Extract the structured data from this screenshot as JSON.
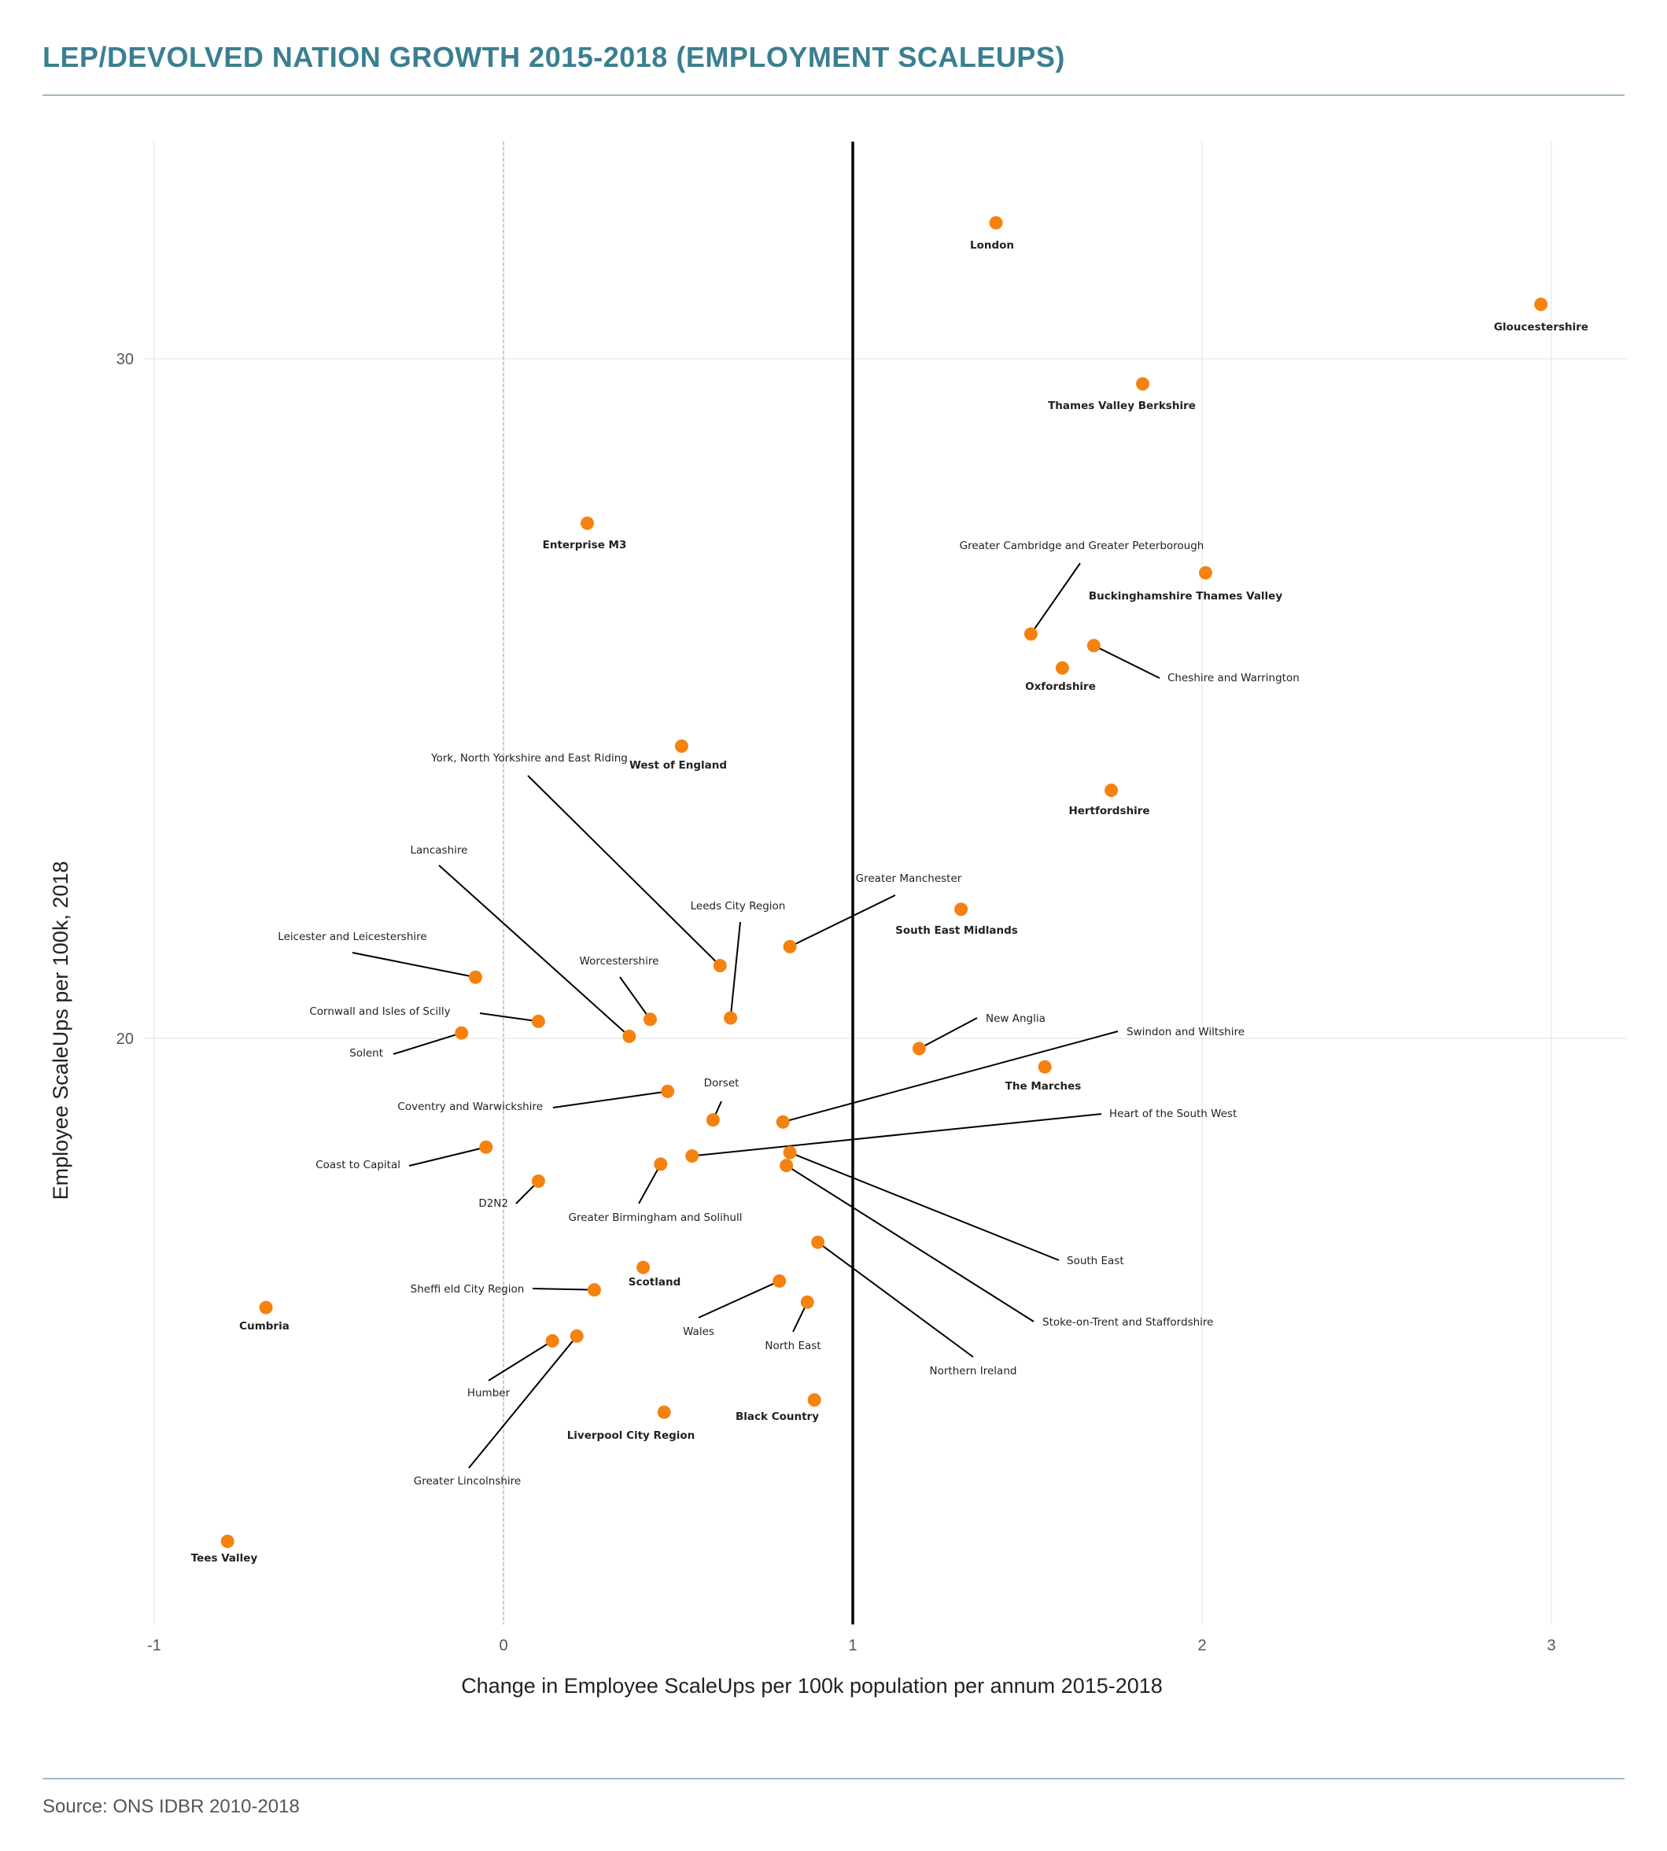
{
  "title": "LEP/DEVOLVED NATION GROWTH 2015-2018 (EMPLOYMENT SCALEUPS)",
  "source": "Source: ONS IDBR 2010-2018",
  "colors": {
    "title": "#3a7f91",
    "point": "#f5820f",
    "rule": "#9dbac3",
    "reference_line": "#000000"
  },
  "chart_data": {
    "type": "scatter",
    "title": "LEP/DEVOLVED NATION GROWTH 2015-2018 (EMPLOYMENT SCALEUPS)",
    "xlabel": "Change in Employee ScaleUps per 100k population per annum 2015-2018",
    "ylabel": "Employee ScaleUps per 100k, 2018",
    "xlim": [
      -1.0,
      3.2
    ],
    "ylim": [
      11.4,
      33.2
    ],
    "xticks": [
      -1,
      0,
      1,
      2,
      3
    ],
    "yticks": [
      20,
      30
    ],
    "grid": true,
    "reference_vline": 1,
    "zero_vline": 0,
    "points": [
      {
        "name": "London",
        "x": 1.41,
        "y": 32.0,
        "bold": true
      },
      {
        "name": "Gloucestershire",
        "x": 2.97,
        "y": 30.8,
        "bold": true
      },
      {
        "name": "Thames Valley Berkshire",
        "x": 1.83,
        "y": 29.63,
        "bold": true
      },
      {
        "name": "Enterprise M3",
        "x": 0.24,
        "y": 27.58,
        "bold": true
      },
      {
        "name": "Buckinghamshire Thames Valley",
        "x": 2.01,
        "y": 26.85,
        "bold": true
      },
      {
        "name": "Greater Cambridge and Greater Peterborough",
        "x": 1.51,
        "y": 25.95,
        "bold": false
      },
      {
        "name": "Cheshire and Warrington",
        "x": 1.69,
        "y": 25.78,
        "bold": false
      },
      {
        "name": "Oxfordshire",
        "x": 1.6,
        "y": 25.45,
        "bold": true
      },
      {
        "name": "West of England",
        "x": 0.51,
        "y": 24.3,
        "bold": true
      },
      {
        "name": "Hertfordshire",
        "x": 1.74,
        "y": 23.65,
        "bold": true
      },
      {
        "name": "South East Midlands",
        "x": 1.31,
        "y": 21.9,
        "bold": true
      },
      {
        "name": "Greater Manchester",
        "x": 0.82,
        "y": 21.35,
        "bold": false
      },
      {
        "name": "York, North Yorkshire and East Riding",
        "x": 0.62,
        "y": 21.07,
        "bold": false
      },
      {
        "name": "Leicester and Leicestershire",
        "x": -0.08,
        "y": 20.9,
        "bold": false
      },
      {
        "name": "Worcestershire",
        "x": 0.42,
        "y": 20.28,
        "bold": false
      },
      {
        "name": "Leeds City Region",
        "x": 0.65,
        "y": 20.3,
        "bold": false
      },
      {
        "name": "Cornwall and Isles of Scilly",
        "x": 0.1,
        "y": 20.25,
        "bold": false
      },
      {
        "name": "Solent",
        "x": -0.12,
        "y": 20.08,
        "bold": false
      },
      {
        "name": "Lancashire",
        "x": 0.36,
        "y": 20.03,
        "bold": false
      },
      {
        "name": "New Anglia",
        "x": 1.19,
        "y": 19.85,
        "bold": false
      },
      {
        "name": "The Marches",
        "x": 1.55,
        "y": 19.58,
        "bold": true
      },
      {
        "name": "Coventry and Warwickshire",
        "x": 0.47,
        "y": 19.22,
        "bold": false
      },
      {
        "name": "Dorset",
        "x": 0.6,
        "y": 18.8,
        "bold": false
      },
      {
        "name": "Swindon and Wiltshire",
        "x": 0.8,
        "y": 18.77,
        "bold": false
      },
      {
        "name": "Coast to Capital",
        "x": -0.05,
        "y": 18.4,
        "bold": false
      },
      {
        "name": "Heart of the South West",
        "x": 0.54,
        "y": 18.27,
        "bold": false
      },
      {
        "name": "South East",
        "x": 0.82,
        "y": 18.32,
        "bold": false
      },
      {
        "name": "Greater Birmingham and Solihull",
        "x": 0.45,
        "y": 18.15,
        "bold": false
      },
      {
        "name": "Stoke-on-Trent and Staffordshire",
        "x": 0.81,
        "y": 18.13,
        "bold": false
      },
      {
        "name": "D2N2",
        "x": 0.1,
        "y": 17.9,
        "bold": false
      },
      {
        "name": "Northern Ireland",
        "x": 0.9,
        "y": 17.0,
        "bold": false
      },
      {
        "name": "Scotland",
        "x": 0.4,
        "y": 16.63,
        "bold": true
      },
      {
        "name": "Wales",
        "x": 0.79,
        "y": 16.43,
        "bold": false
      },
      {
        "name": "Sheffi eld City Region",
        "x": 0.26,
        "y": 16.3,
        "bold": false
      },
      {
        "name": "North East",
        "x": 0.87,
        "y": 16.12,
        "bold": false
      },
      {
        "name": "Cumbria",
        "x": -0.68,
        "y": 16.04,
        "bold": true
      },
      {
        "name": "Greater Lincolnshire",
        "x": 0.21,
        "y": 15.62,
        "bold": false
      },
      {
        "name": "Humber",
        "x": 0.14,
        "y": 15.55,
        "bold": false
      },
      {
        "name": "Black Country",
        "x": 0.89,
        "y": 14.68,
        "bold": true
      },
      {
        "name": "Liverpool City Region",
        "x": 0.46,
        "y": 14.5,
        "bold": true
      },
      {
        "name": "Tees Valley",
        "x": -0.79,
        "y": 12.6,
        "bold": true
      }
    ]
  }
}
